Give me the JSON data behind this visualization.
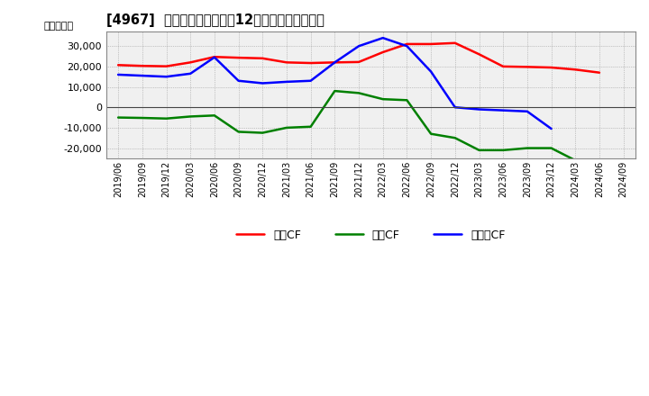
{
  "title": "[4967]  キャッシュフローの12か月移動合計の推移",
  "ylabel": "（百万円）",
  "ylim": [
    -25000,
    37000
  ],
  "yticks": [
    -20000,
    -10000,
    0,
    10000,
    20000,
    30000
  ],
  "x_labels": [
    "2019/06",
    "2019/09",
    "2019/12",
    "2020/03",
    "2020/06",
    "2020/09",
    "2020/12",
    "2021/03",
    "2021/06",
    "2021/09",
    "2021/12",
    "2022/03",
    "2022/06",
    "2022/09",
    "2022/12",
    "2023/03",
    "2023/06",
    "2023/09",
    "2023/12",
    "2024/03",
    "2024/06",
    "2024/09"
  ],
  "operating_cf": [
    20700,
    20300,
    20100,
    22000,
    24700,
    24300,
    24000,
    22000,
    21700,
    22000,
    22200,
    27000,
    31000,
    31000,
    31500,
    26000,
    20000,
    19800,
    19500,
    18500,
    17000,
    null
  ],
  "investing_cf": [
    -5000,
    -5200,
    -5500,
    -4500,
    -4000,
    -12000,
    -12500,
    -10000,
    -9500,
    8000,
    7000,
    4000,
    3500,
    -13000,
    -15000,
    -21000,
    -21000,
    -20000,
    -20000,
    -26000,
    null,
    null
  ],
  "free_cf": [
    16000,
    15500,
    15000,
    16500,
    24500,
    13000,
    11800,
    12500,
    13000,
    22000,
    30000,
    34000,
    30000,
    17500,
    0,
    -1000,
    -1500,
    -2000,
    -10500,
    null,
    null,
    null
  ],
  "operating_color": "#ff0000",
  "investing_color": "#008000",
  "free_color": "#0000ff",
  "background_color": "#ffffff",
  "plot_bg_color": "#f0f0f0",
  "grid_color": "#999999",
  "line_width": 1.8,
  "legend_labels": [
    "営業CF",
    "投資CF",
    "フリーCF"
  ]
}
